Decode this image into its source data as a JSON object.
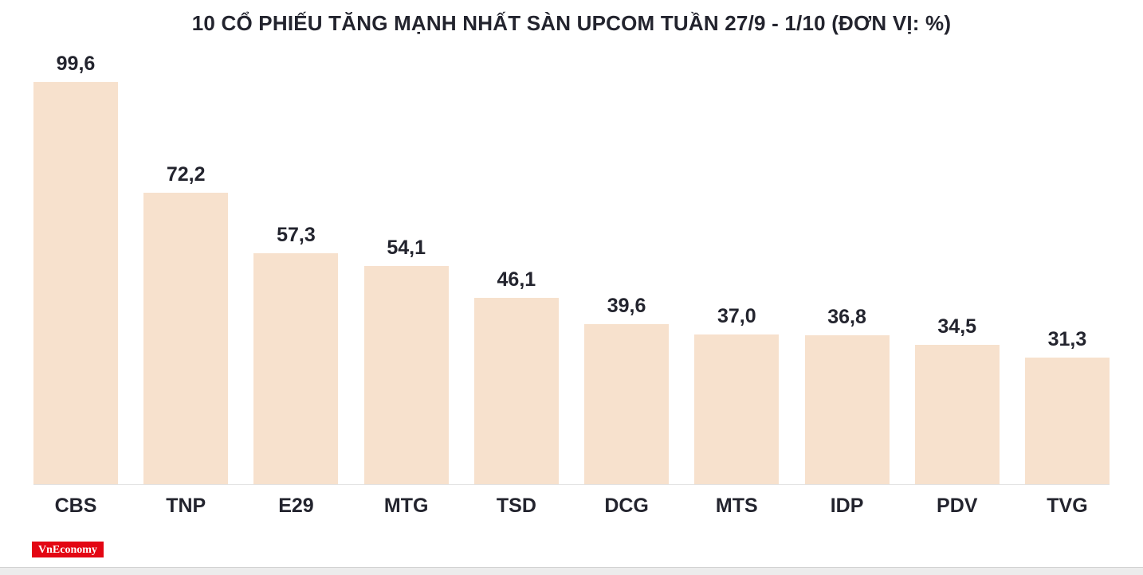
{
  "chart_data": {
    "type": "bar",
    "title": "10 CỔ PHIẾU TĂNG MẠNH NHẤT SÀN UPCOM TUẦN 27/9 - 1/10 (ĐƠN VỊ: %)",
    "categories": [
      "CBS",
      "TNP",
      "E29",
      "MTG",
      "TSD",
      "DCG",
      "MTS",
      "IDP",
      "PDV",
      "TVG"
    ],
    "values": [
      99.6,
      72.2,
      57.3,
      54.1,
      46.1,
      39.6,
      37.0,
      36.8,
      34.5,
      31.3
    ],
    "value_labels": [
      "99,6",
      "72,2",
      "57,3",
      "54,1",
      "46,1",
      "39,6",
      "37,0",
      "36,8",
      "34,5",
      "31,3"
    ],
    "unit": "%",
    "ylim": [
      0,
      105
    ],
    "grid": false,
    "legend": false,
    "bar_color": "#f7e1cd",
    "label_color": "#23242e"
  },
  "branding": {
    "logo_text": "VnEconomy"
  }
}
